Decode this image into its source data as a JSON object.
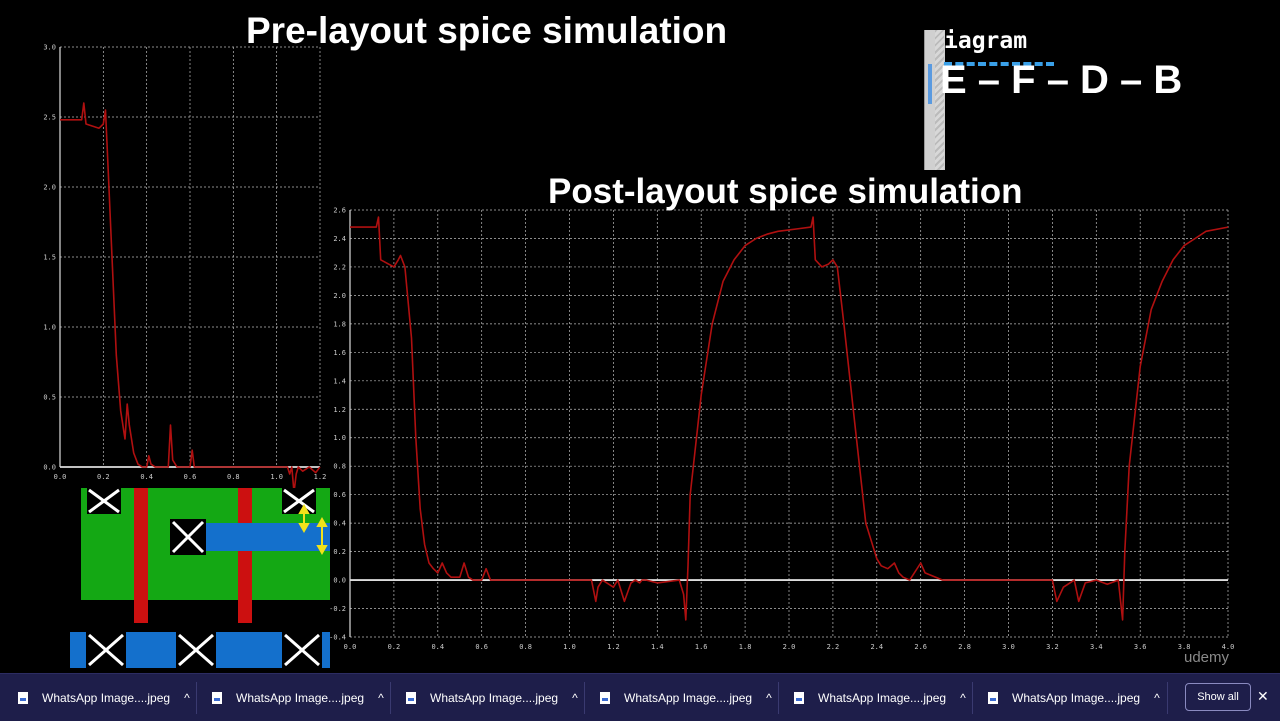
{
  "titles": {
    "pre": "Pre-layout spice simulation",
    "post": "Post-layout spice simulation"
  },
  "diagram_panel": {
    "heading": "iagram",
    "sequence": "E – F – D – B"
  },
  "watermark": "udemy",
  "chart_data": [
    {
      "type": "line",
      "title": "Pre-layout spice simulation",
      "xlim": [
        0,
        1.2
      ],
      "ylim": [
        0,
        3.0
      ],
      "xticks": [
        "0.0",
        "0.2",
        "0.4",
        "0.6",
        "0.8",
        "1.0",
        "1.2"
      ],
      "yticks": [
        "0.0",
        "0.5",
        "1.0",
        "1.5",
        "2.0",
        "2.5",
        "3.0"
      ],
      "grid": true,
      "series": [
        {
          "color": "#b01010",
          "x": [
            0.0,
            0.1,
            0.11,
            0.12,
            0.18,
            0.2,
            0.21,
            0.22,
            0.24,
            0.26,
            0.28,
            0.3,
            0.31,
            0.32,
            0.34,
            0.36,
            0.38,
            0.4,
            0.41,
            0.42,
            0.44,
            0.46,
            0.48,
            0.5,
            0.51,
            0.52,
            0.54,
            0.56,
            0.58,
            0.6,
            0.61,
            0.62,
            0.64,
            0.8,
            1.0,
            1.05,
            1.06,
            1.07,
            1.08,
            1.09,
            1.1,
            1.12,
            1.15,
            1.18,
            1.2
          ],
          "y": [
            2.48,
            2.48,
            2.6,
            2.45,
            2.42,
            2.45,
            2.55,
            2.2,
            1.5,
            0.8,
            0.4,
            0.2,
            0.45,
            0.3,
            0.1,
            0.02,
            0.0,
            0.0,
            0.08,
            0.02,
            0.0,
            0.0,
            0.0,
            0.0,
            0.3,
            0.05,
            0.0,
            0.0,
            0.0,
            0.0,
            0.12,
            0.0,
            0.0,
            0.0,
            0.0,
            0.0,
            -0.05,
            0.0,
            -0.18,
            -0.05,
            0.0,
            -0.03,
            0.0,
            -0.04,
            0.0
          ]
        }
      ]
    },
    {
      "type": "line",
      "title": "Post-layout spice simulation",
      "xlim": [
        0,
        4.0
      ],
      "ylim": [
        -0.4,
        2.6
      ],
      "xticks": [
        "0.0",
        "0.2",
        "0.4",
        "0.6",
        "0.8",
        "1.0",
        "1.2",
        "1.4",
        "1.6",
        "1.8",
        "2.0",
        "2.2",
        "2.4",
        "2.6",
        "2.8",
        "3.0",
        "3.2",
        "3.4",
        "3.6",
        "3.8",
        "4.0"
      ],
      "yticks": [
        "2.6",
        "2.4",
        "2.2",
        "2.0",
        "1.8",
        "1.6",
        "1.4",
        "1.2",
        "1.0",
        "0.8",
        "0.6",
        "0.4",
        "0.2",
        "0.0",
        "-0.2",
        "-0.4"
      ],
      "grid": true,
      "series": [
        {
          "color": "#b01010",
          "x": [
            0.0,
            0.12,
            0.13,
            0.14,
            0.2,
            0.22,
            0.23,
            0.25,
            0.28,
            0.3,
            0.32,
            0.34,
            0.36,
            0.38,
            0.4,
            0.42,
            0.44,
            0.46,
            0.5,
            0.52,
            0.54,
            0.56,
            0.6,
            0.62,
            0.64,
            0.66,
            1.1,
            1.12,
            1.13,
            1.15,
            1.2,
            1.22,
            1.25,
            1.28,
            1.3,
            1.32,
            1.33,
            1.35,
            1.4,
            1.5,
            1.52,
            1.53,
            1.54,
            1.55,
            1.6,
            1.65,
            1.7,
            1.75,
            1.8,
            1.85,
            1.9,
            1.95,
            2.0,
            2.05,
            2.1,
            2.11,
            2.12,
            2.15,
            2.18,
            2.2,
            2.22,
            2.25,
            2.3,
            2.35,
            2.4,
            2.42,
            2.45,
            2.48,
            2.5,
            2.52,
            2.55,
            2.6,
            2.62,
            2.7,
            3.0,
            3.2,
            3.22,
            3.25,
            3.3,
            3.32,
            3.35,
            3.4,
            3.45,
            3.5,
            3.52,
            3.53,
            3.55,
            3.6,
            3.65,
            3.7,
            3.75,
            3.8,
            3.85,
            3.9,
            4.0
          ],
          "y": [
            2.48,
            2.48,
            2.55,
            2.25,
            2.2,
            2.25,
            2.28,
            2.2,
            1.7,
            1.0,
            0.5,
            0.25,
            0.12,
            0.08,
            0.05,
            0.12,
            0.05,
            0.02,
            0.02,
            0.12,
            0.02,
            0.0,
            0.0,
            0.08,
            0.0,
            0.0,
            0.0,
            -0.15,
            -0.05,
            0.0,
            -0.05,
            0.0,
            -0.15,
            -0.02,
            0.0,
            -0.02,
            0.0,
            0.0,
            -0.02,
            0.0,
            -0.1,
            -0.28,
            0.1,
            0.6,
            1.3,
            1.8,
            2.1,
            2.25,
            2.35,
            2.4,
            2.43,
            2.45,
            2.46,
            2.47,
            2.48,
            2.55,
            2.25,
            2.2,
            2.22,
            2.25,
            2.2,
            1.8,
            1.1,
            0.4,
            0.15,
            0.1,
            0.08,
            0.12,
            0.05,
            0.02,
            0.0,
            0.12,
            0.05,
            0.0,
            0.0,
            0.0,
            -0.15,
            -0.05,
            0.0,
            -0.15,
            -0.02,
            0.0,
            -0.03,
            0.0,
            -0.28,
            0.2,
            0.8,
            1.5,
            1.9,
            2.1,
            2.25,
            2.35,
            2.4,
            2.45,
            2.48
          ]
        }
      ]
    }
  ],
  "taskbar": {
    "items": [
      {
        "label": "WhatsApp Image....jpeg"
      },
      {
        "label": "WhatsApp Image....jpeg"
      },
      {
        "label": "WhatsApp Image....jpeg"
      },
      {
        "label": "WhatsApp Image....jpeg"
      },
      {
        "label": "WhatsApp Image....jpeg"
      },
      {
        "label": "WhatsApp Image....jpeg"
      }
    ],
    "show_all_label": "Show all",
    "close_symbol": "✕",
    "chevron_symbol": "^"
  },
  "colors": {
    "layout_green": "#14a814",
    "layout_red": "#cc1010",
    "layout_blue": "#1470cc",
    "waveform": "#b01010",
    "grid": "#bbbbbb",
    "baseline": "#dddddd",
    "taskbar_bg": "#1e1e4a",
    "accent_dash": "#3aa0e8"
  }
}
